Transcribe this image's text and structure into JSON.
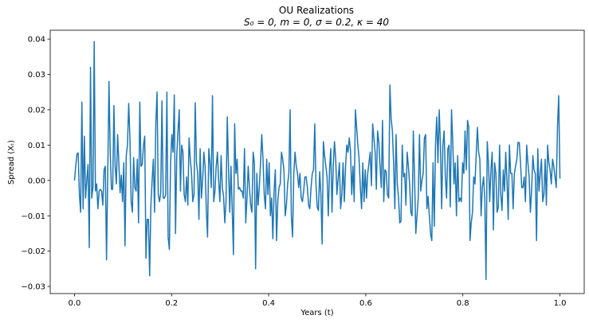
{
  "chart_data": {
    "type": "line",
    "title": "OU Realizations",
    "subtitle": "S₀ = 0, m = 0, σ = 0.2, κ = 40",
    "xlabel": "Years (t)",
    "ylabel": "Spread (Xₜ)",
    "xlim": [
      -0.05,
      1.05
    ],
    "ylim": [
      -0.032,
      0.0425
    ],
    "x_ticks": [
      0.0,
      0.2,
      0.4,
      0.6,
      0.8,
      1.0
    ],
    "x_tick_labels": [
      "0.0",
      "0.2",
      "0.4",
      "0.6",
      "0.8",
      "1.0"
    ],
    "y_ticks": [
      -0.03,
      -0.02,
      -0.01,
      0.0,
      0.01,
      0.02,
      0.03,
      0.04
    ],
    "y_tick_labels": [
      "−0.03",
      "−0.02",
      "−0.01",
      "0.00",
      "0.01",
      "0.02",
      "0.03",
      "0.04"
    ],
    "grid": false,
    "line_color": "#1f77b4",
    "series": [
      {
        "x_start": 0.0,
        "x_end": 1.0,
        "values": [
          0.0,
          0.004,
          0.0075,
          0.0078,
          -0.004,
          -0.009,
          0.0222,
          -0.008,
          0.0125,
          -0.005,
          0.0,
          0.0045,
          -0.019,
          0.032,
          -0.005,
          -0.002,
          0.0393,
          -0.003,
          -0.001,
          -0.008,
          -0.003,
          -0.0025,
          -0.003,
          -0.007,
          0.003,
          0.004,
          -0.0225,
          0.002,
          0.028,
          0.008,
          -0.0025,
          -0.0025,
          0.0212,
          0.004,
          -0.001,
          0.013,
          0.005,
          -0.0035,
          0.0015,
          -0.006,
          0.005,
          -0.0185,
          0.007,
          0.01,
          0.0218,
          0.012,
          -0.006,
          -0.009,
          0.0065,
          -0.002,
          -0.003,
          0.006,
          -0.012,
          0.0222,
          0.004,
          0.0045,
          0.01,
          0.0125,
          -0.022,
          -0.011,
          -0.011,
          -0.027,
          -0.007,
          0.0,
          0.006,
          -0.009,
          0.016,
          0.025,
          -0.004,
          -0.006,
          -0.0035,
          0.0225,
          -0.005,
          -0.005,
          -0.004,
          0.025,
          -0.016,
          -0.0195,
          0.005,
          0.013,
          0.008,
          0.0242,
          -0.015,
          0.007,
          0.014,
          0.02,
          -0.003,
          0.01,
          0.008,
          -0.004,
          -0.006,
          0.001,
          -0.007,
          0.012,
          0.006,
          0.002,
          -0.006,
          -0.004,
          0.022,
          0.005,
          0.002,
          -0.011,
          0.009,
          -0.005,
          0.0,
          0.008,
          0.004,
          -0.0085,
          -0.016,
          0.009,
          0.005,
          -0.002,
          0.024,
          -0.006,
          -0.003,
          0.004,
          0.008,
          0.0,
          -0.006,
          0.007,
          -0.002,
          -0.0045,
          -0.012,
          -0.006,
          0.018,
          0.004,
          -0.009,
          0.004,
          -0.008,
          -0.021,
          0.016,
          0.002,
          0.006,
          -0.0025,
          -0.002,
          -0.003,
          -0.003,
          -0.005,
          0.009,
          -0.012,
          -0.005,
          0.004,
          -0.002,
          -0.007,
          -0.009,
          0.008,
          0.005,
          -0.025,
          0.002,
          -0.007,
          -0.002,
          0.005,
          0.013,
          0.006,
          -0.004,
          -0.008,
          0.006,
          -0.004,
          0.005,
          -0.01,
          -0.005,
          -0.0165,
          -0.003,
          0.003,
          -0.017,
          -0.006,
          -0.002,
          -0.001,
          0.008,
          0.006,
          0.003,
          -0.01,
          -0.007,
          -0.001,
          0.002,
          0.02,
          -0.01,
          -0.016,
          0.002,
          0.008,
          0.004,
          0.002,
          -0.002,
          0.002,
          -0.005,
          -0.006,
          -0.003,
          0.001,
          0.001,
          -0.002,
          -0.007,
          -0.008,
          -0.002,
          0.002,
          0.003,
          0.016,
          -0.001,
          -0.0075,
          -0.0085,
          0.0025,
          -0.004,
          -0.018,
          0.011,
          0.007,
          0.004,
          0.001,
          -0.01,
          0.003,
          0.009,
          -0.009,
          0.004,
          0.011,
          0.006,
          -0.004,
          0.0005,
          0.005,
          -0.008,
          -0.004,
          0.005,
          -0.006,
          0.004,
          0.01,
          0.008,
          0.012,
          0.0085,
          -0.004,
          0.004,
          -0.006,
          0.02,
          0.015,
          0.01,
          0.006,
          -0.002,
          -0.008,
          0.005,
          -0.006,
          0.003,
          -0.005,
          0.002,
          0.005,
          0.008,
          -0.0015,
          0.016,
          0.012,
          0.008,
          -0.0025,
          0.014,
          0.011,
          0.004,
          -0.002,
          0.017,
          -0.006,
          0.003,
          0.0025,
          -0.004,
          -0.005,
          0.027,
          0.0175,
          0.014,
          0.005,
          -0.008,
          0.013,
          -0.001,
          -0.005,
          -0.012,
          -0.0115,
          0.01,
          0.001,
          0.002,
          -0.007,
          0.008,
          0.004,
          -0.001,
          -0.009,
          -0.01,
          0.014,
          0.001,
          -0.015,
          -0.01,
          -0.005,
          0.013,
          -0.003,
          0.0,
          0.002,
          0.012,
          0.013,
          -0.008,
          -0.0045,
          -0.01,
          -0.015,
          -0.017,
          0.005,
          -0.013,
          0.01,
          0.018,
          0.005,
          0.02,
          0.01,
          -0.008,
          0.01,
          0.014,
          0.001,
          -0.005,
          0.009,
          0.01,
          -0.0075,
          0.02,
          0.011,
          -0.001,
          0.005,
          -0.01,
          0.007,
          -0.006,
          -0.005,
          -0.006,
          0.005,
          0.002,
          0.014,
          0.003,
          0.017,
          0.015,
          -0.017,
          -0.012,
          -0.009,
          0.001,
          -0.001,
          0.007,
          0.015,
          0.008,
          0.006,
          -0.01,
          -0.002,
          0.001,
          -0.005,
          -0.028,
          0.011,
          0.005,
          -0.006,
          0.003,
          0.008,
          -0.014,
          0.005,
          0.002,
          -0.009,
          -0.0075,
          0.01,
          -0.004,
          -0.0085,
          0.003,
          -0.003,
          0.008,
          0.0,
          -0.011,
          0.01,
          0.002,
          0.002,
          -0.008,
          0.002,
          0.004,
          0.006,
          0.0108,
          0.0107,
          0.005,
          -0.002,
          -0.002,
          0.001,
          -0.006,
          0.01,
          0.005,
          0.001,
          -0.009,
          -0.003,
          0.007,
          0.003,
          0.002,
          -0.017,
          0.009,
          -0.003,
          0.002,
          0.006,
          -0.006,
          -0.004,
          0.006,
          -0.007,
          0.01,
          0.005,
          0.003,
          -0.001,
          0.006,
          0.004,
          0.001,
          -0.002,
          0.015,
          0.024,
          0.0005
        ]
      }
    ]
  }
}
